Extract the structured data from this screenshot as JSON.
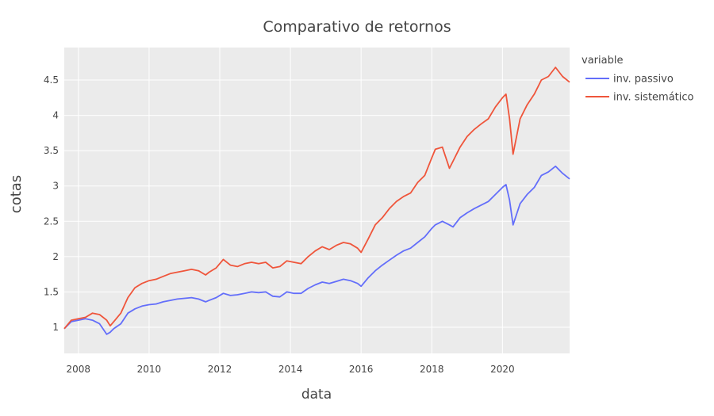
{
  "chart_data": {
    "type": "line",
    "title": "Comparativo de retornos",
    "xlabel": "data",
    "ylabel": "cotas",
    "xlim": [
      2007.6,
      2021.9
    ],
    "ylim": [
      0.63,
      4.96
    ],
    "x_ticks": [
      2008,
      2010,
      2012,
      2014,
      2016,
      2018,
      2020
    ],
    "x_tick_labels": [
      "2008",
      "2010",
      "2012",
      "2014",
      "2016",
      "2018",
      "2020"
    ],
    "y_ticks": [
      1,
      1.5,
      2,
      2.5,
      3,
      3.5,
      4,
      4.5
    ],
    "y_tick_labels": [
      "1",
      "1.5",
      "2",
      "2.5",
      "3",
      "3.5",
      "4",
      "4.5"
    ],
    "grid": true,
    "legend": {
      "title": "variable",
      "position": "right"
    },
    "series": [
      {
        "name": "inv. passivo",
        "color": "#636efa",
        "x": [
          2007.6,
          2007.8,
          2008.0,
          2008.2,
          2008.4,
          2008.6,
          2008.8,
          2008.9,
          2009.0,
          2009.2,
          2009.4,
          2009.6,
          2009.8,
          2010.0,
          2010.2,
          2010.4,
          2010.6,
          2010.8,
          2011.0,
          2011.2,
          2011.4,
          2011.6,
          2011.7,
          2011.9,
          2012.1,
          2012.3,
          2012.5,
          2012.7,
          2012.9,
          2013.1,
          2013.3,
          2013.5,
          2013.7,
          2013.9,
          2014.1,
          2014.3,
          2014.5,
          2014.7,
          2014.9,
          2015.1,
          2015.3,
          2015.5,
          2015.7,
          2015.9,
          2016.0,
          2016.2,
          2016.4,
          2016.6,
          2016.8,
          2017.0,
          2017.2,
          2017.4,
          2017.6,
          2017.8,
          2018.0,
          2018.1,
          2018.3,
          2018.5,
          2018.6,
          2018.8,
          2019.0,
          2019.2,
          2019.4,
          2019.6,
          2019.8,
          2020.0,
          2020.1,
          2020.2,
          2020.3,
          2020.5,
          2020.7,
          2020.9,
          2021.1,
          2021.3,
          2021.5,
          2021.7,
          2021.9
        ],
        "values": [
          0.98,
          1.08,
          1.1,
          1.12,
          1.1,
          1.05,
          0.9,
          0.93,
          0.98,
          1.05,
          1.2,
          1.26,
          1.3,
          1.32,
          1.33,
          1.36,
          1.38,
          1.4,
          1.41,
          1.42,
          1.4,
          1.36,
          1.38,
          1.42,
          1.48,
          1.45,
          1.46,
          1.48,
          1.5,
          1.49,
          1.5,
          1.44,
          1.43,
          1.5,
          1.48,
          1.48,
          1.55,
          1.6,
          1.64,
          1.62,
          1.65,
          1.68,
          1.66,
          1.62,
          1.58,
          1.7,
          1.8,
          1.88,
          1.95,
          2.02,
          2.08,
          2.12,
          2.2,
          2.28,
          2.4,
          2.45,
          2.5,
          2.45,
          2.42,
          2.55,
          2.62,
          2.68,
          2.73,
          2.78,
          2.88,
          2.98,
          3.02,
          2.8,
          2.45,
          2.75,
          2.88,
          2.98,
          3.15,
          3.2,
          3.28,
          3.18,
          3.1
        ]
      },
      {
        "name": "inv. sistemático",
        "color": "#ef553b",
        "x": [
          2007.6,
          2007.8,
          2008.0,
          2008.2,
          2008.4,
          2008.6,
          2008.8,
          2008.9,
          2009.0,
          2009.2,
          2009.4,
          2009.6,
          2009.8,
          2010.0,
          2010.2,
          2010.4,
          2010.6,
          2010.8,
          2011.0,
          2011.2,
          2011.4,
          2011.6,
          2011.7,
          2011.9,
          2012.1,
          2012.3,
          2012.5,
          2012.7,
          2012.9,
          2013.1,
          2013.3,
          2013.5,
          2013.7,
          2013.9,
          2014.1,
          2014.3,
          2014.5,
          2014.7,
          2014.9,
          2015.1,
          2015.3,
          2015.5,
          2015.7,
          2015.9,
          2016.0,
          2016.2,
          2016.4,
          2016.6,
          2016.8,
          2017.0,
          2017.2,
          2017.4,
          2017.6,
          2017.8,
          2018.0,
          2018.1,
          2018.3,
          2018.5,
          2018.6,
          2018.8,
          2019.0,
          2019.2,
          2019.4,
          2019.6,
          2019.8,
          2020.0,
          2020.1,
          2020.2,
          2020.3,
          2020.5,
          2020.7,
          2020.9,
          2021.1,
          2021.3,
          2021.5,
          2021.7,
          2021.9
        ],
        "values": [
          0.98,
          1.1,
          1.12,
          1.14,
          1.2,
          1.18,
          1.1,
          1.02,
          1.08,
          1.2,
          1.42,
          1.56,
          1.62,
          1.66,
          1.68,
          1.72,
          1.76,
          1.78,
          1.8,
          1.82,
          1.8,
          1.74,
          1.78,
          1.84,
          1.96,
          1.88,
          1.86,
          1.9,
          1.92,
          1.9,
          1.92,
          1.84,
          1.86,
          1.94,
          1.92,
          1.9,
          2.0,
          2.08,
          2.14,
          2.1,
          2.16,
          2.2,
          2.18,
          2.12,
          2.06,
          2.25,
          2.45,
          2.55,
          2.68,
          2.78,
          2.85,
          2.9,
          3.05,
          3.15,
          3.4,
          3.52,
          3.55,
          3.25,
          3.35,
          3.55,
          3.7,
          3.8,
          3.88,
          3.95,
          4.12,
          4.25,
          4.3,
          3.95,
          3.45,
          3.95,
          4.15,
          4.3,
          4.5,
          4.55,
          4.68,
          4.55,
          4.47
        ]
      }
    ]
  }
}
